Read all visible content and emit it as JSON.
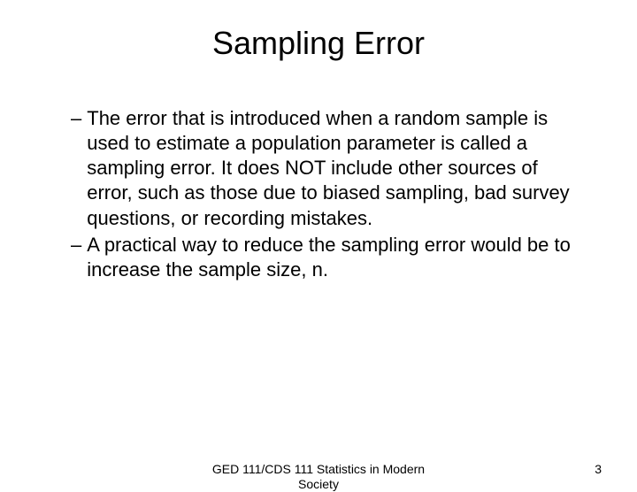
{
  "slide": {
    "title": "Sampling Error",
    "bullets": [
      "The error that is introduced when a random sample is used to estimate a population parameter is called a sampling error.  It does NOT include other sources of error, such as those due to biased sampling, bad survey questions, or recording mistakes.",
      "A practical way to reduce the sampling error would be to increase the sample size, n."
    ],
    "footer_center": "GED 111/CDS 111 Statistics in Modern Society",
    "page_number": "3"
  },
  "style": {
    "background_color": "#ffffff",
    "text_color": "#000000",
    "title_fontsize": 36,
    "body_fontsize": 22,
    "footer_fontsize": 14,
    "font_family": "Arial"
  }
}
